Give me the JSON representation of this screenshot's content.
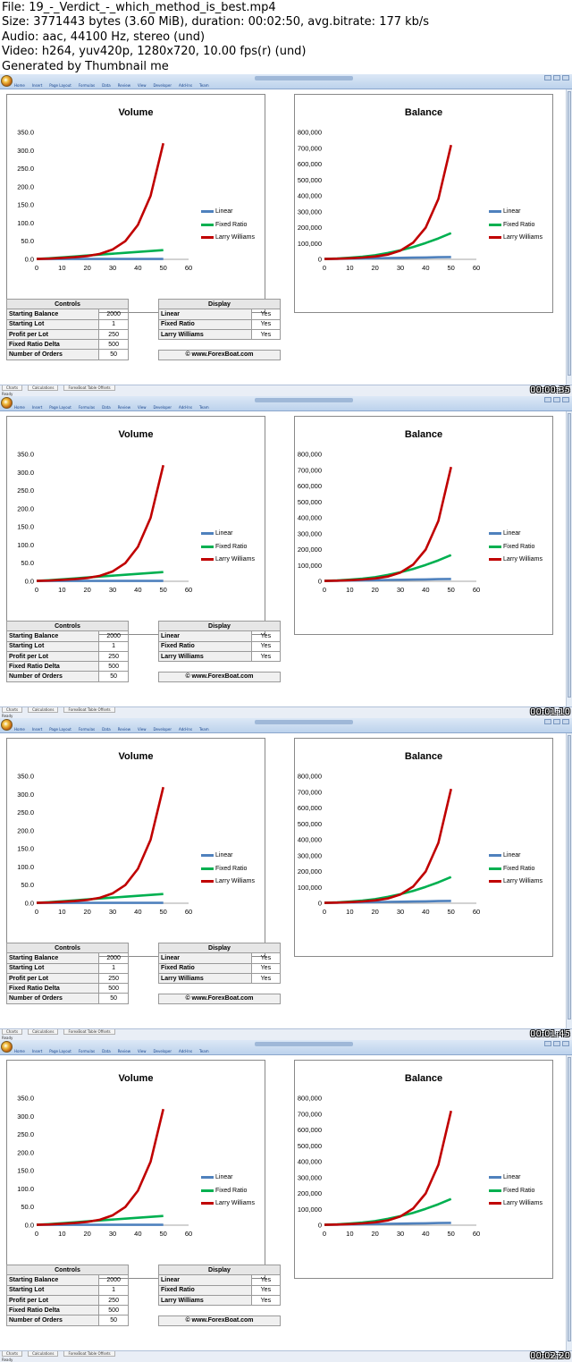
{
  "header": {
    "lines": [
      "File: 19_-_Verdict_-_which_method_is_best.mp4",
      "Size: 3771443 bytes (3.60 MiB), duration: 00:02:50, avg.bitrate: 177 kb/s",
      "Audio: aac, 44100 Hz, stereo (und)",
      "Video: h264, yuv420p, 1280x720, 10.00 fps(r) (und)",
      "Generated by Thumbnail me"
    ]
  },
  "ribbon": {
    "tabs": [
      "Home",
      "Insert",
      "Page Layout",
      "Formulas",
      "Data",
      "Review",
      "View",
      "Developer",
      "Add-Ins",
      "Team"
    ]
  },
  "charts": {
    "volume": {
      "title": "Volume"
    },
    "balance": {
      "title": "Balance"
    }
  },
  "legend": {
    "items": [
      {
        "label": "Linear",
        "color": "#4f81bd"
      },
      {
        "label": "Fixed Ratio",
        "color": "#00b050"
      },
      {
        "label": "Larry Williams",
        "color": "#c00000"
      }
    ]
  },
  "chart_data": [
    {
      "type": "line",
      "title": "Volume",
      "xlim": [
        0,
        60
      ],
      "ylim": [
        0,
        350
      ],
      "x_ticks": [
        0,
        10,
        20,
        30,
        40,
        50,
        60
      ],
      "y_ticks": [
        "0.0",
        "50.0",
        "100.0",
        "150.0",
        "200.0",
        "250.0",
        "300.0",
        "350.0"
      ],
      "x": [
        0,
        5,
        10,
        15,
        20,
        25,
        30,
        35,
        40,
        45,
        50
      ],
      "series": [
        {
          "name": "Linear",
          "color": "#4f81bd",
          "values": [
            1,
            1,
            1,
            1,
            1,
            1,
            1,
            1,
            1,
            1,
            1
          ]
        },
        {
          "name": "Fixed Ratio",
          "color": "#00b050",
          "values": [
            1,
            3,
            5.5,
            8,
            10.5,
            13,
            15.5,
            18,
            20.5,
            23,
            25.5
          ]
        },
        {
          "name": "Larry Williams",
          "color": "#c00000",
          "values": [
            1,
            2,
            4,
            6,
            9,
            15,
            27,
            50,
            95,
            175,
            320
          ]
        }
      ]
    },
    {
      "type": "line",
      "title": "Balance",
      "xlim": [
        0,
        60
      ],
      "ylim": [
        0,
        800000
      ],
      "x_ticks": [
        0,
        10,
        20,
        30,
        40,
        50,
        60
      ],
      "y_ticks": [
        "0",
        "100,000",
        "200,000",
        "300,000",
        "400,000",
        "500,000",
        "600,000",
        "700,000",
        "800,000"
      ],
      "x": [
        0,
        5,
        10,
        15,
        20,
        25,
        30,
        35,
        40,
        45,
        50
      ],
      "series": [
        {
          "name": "Linear",
          "color": "#4f81bd",
          "values": [
            2000,
            3250,
            4500,
            5750,
            7000,
            8250,
            9500,
            10750,
            12000,
            13250,
            14500
          ]
        },
        {
          "name": "Fixed Ratio",
          "color": "#00b050",
          "values": [
            2000,
            5000,
            10000,
            17000,
            26000,
            40000,
            57000,
            78000,
            103000,
            132000,
            165000
          ]
        },
        {
          "name": "Larry Williams",
          "color": "#c00000",
          "values": [
            2000,
            4000,
            7000,
            11000,
            18000,
            30000,
            55000,
            105000,
            200000,
            380000,
            720000
          ]
        }
      ]
    }
  ],
  "controls": {
    "header": "Controls",
    "rows": [
      {
        "label": "Starting Balance",
        "value": "2000"
      },
      {
        "label": "Starting Lot",
        "value": "1"
      },
      {
        "label": "Profit per Lot",
        "value": "250"
      },
      {
        "label": "Fixed Ratio Delta",
        "value": "500"
      },
      {
        "label": "Number of Orders",
        "value": "50"
      }
    ]
  },
  "display": {
    "header": "Display",
    "rows": [
      {
        "label": "Linear",
        "value": "Yes"
      },
      {
        "label": "Fixed Ratio",
        "value": "Yes"
      },
      {
        "label": "Larry Williams",
        "value": "Yes"
      }
    ]
  },
  "copyright": "© www.ForexBoat.com",
  "sheet_tabs": [
    "Charts",
    "Calculations",
    "ForexBoat Table Offsets"
  ],
  "status": "Ready",
  "frames": [
    {
      "timestamp": "00:00:35"
    },
    {
      "timestamp": "00:01:10"
    },
    {
      "timestamp": "00:01:45"
    },
    {
      "timestamp": "00:02:20"
    }
  ]
}
